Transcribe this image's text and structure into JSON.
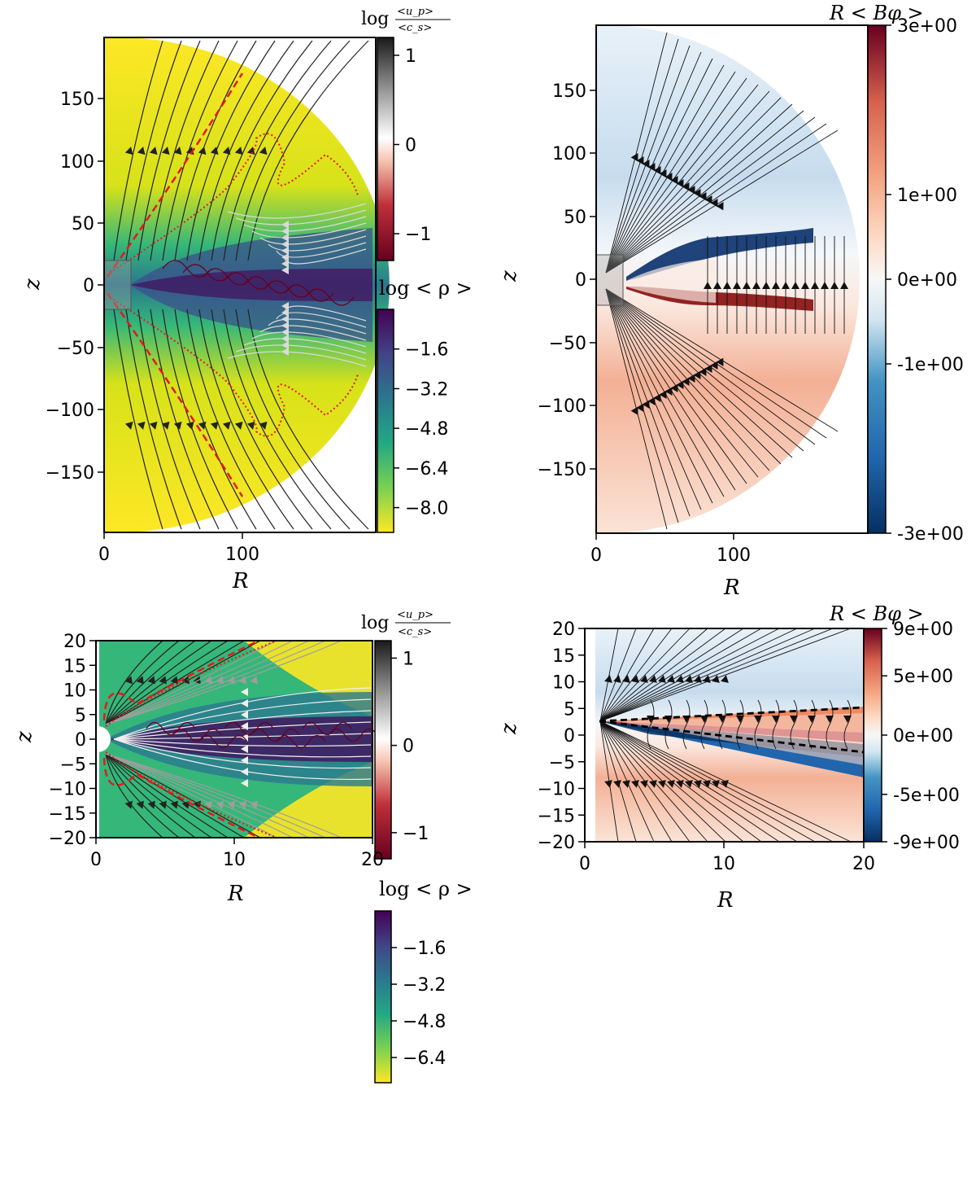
{
  "figure": {
    "panels": [
      {
        "id": "top-left",
        "xlabel": "R",
        "ylabel": "z",
        "xticks": [
          "0",
          "100"
        ],
        "yticks": [
          "150",
          "100",
          "50",
          "0",
          "−50",
          "−100",
          "−150"
        ],
        "xlim": [
          0,
          200
        ],
        "ylim": [
          -200,
          200
        ],
        "field": "log density",
        "inset_box": true,
        "colorbars": [
          {
            "id": "mach",
            "label_main": "log",
            "label_num": "<u_p>",
            "label_den": "<c_s>",
            "ticks": [
              "1",
              "0",
              "−1"
            ],
            "range": [
              -1.3,
              1.2
            ]
          },
          {
            "id": "density",
            "label": "log < ρ >",
            "ticks": [
              "−1.6",
              "−3.2",
              "−4.8",
              "−6.4",
              "−8.0"
            ],
            "range": [
              -9.0,
              0.0
            ]
          }
        ]
      },
      {
        "id": "top-right",
        "xlabel": "R",
        "ylabel": "z",
        "xticks": [
          "0",
          "100"
        ],
        "yticks": [
          "150",
          "100",
          "50",
          "0",
          "−50",
          "−100",
          "−150"
        ],
        "xlim": [
          0,
          200
        ],
        "ylim": [
          -200,
          200
        ],
        "field": "R B_phi",
        "inset_box": true,
        "colorbars": [
          {
            "id": "bphi",
            "label": "R < Bφ >",
            "ticks": [
              "3e+00",
              "1e+00",
              "0e+00",
              "-1e+00",
              "-3e+00"
            ],
            "range": [
              -3,
              3
            ]
          }
        ]
      },
      {
        "id": "bottom-left",
        "xlabel": "R",
        "ylabel": "z",
        "xticks": [
          "0",
          "10",
          "20"
        ],
        "yticks": [
          "20",
          "15",
          "10",
          "5",
          "0",
          "−5",
          "−10",
          "−15",
          "−20"
        ],
        "xlim": [
          0,
          20
        ],
        "ylim": [
          -20,
          20
        ],
        "field": "log density",
        "colorbars": [
          {
            "id": "mach",
            "label_main": "log",
            "label_num": "<u_p>",
            "label_den": "<c_s>",
            "ticks": [
              "1",
              "0",
              "−1"
            ],
            "range": [
              -1.3,
              1.2
            ]
          },
          {
            "id": "density",
            "label": "log < ρ >",
            "ticks": [
              "−1.6",
              "−3.2",
              "−4.8",
              "−6.4"
            ],
            "range": [
              -7.5,
              0.0
            ]
          }
        ]
      },
      {
        "id": "bottom-right",
        "xlabel": "R",
        "ylabel": "z",
        "xticks": [
          "0",
          "10",
          "20"
        ],
        "yticks": [
          "20",
          "15",
          "10",
          "5",
          "0",
          "−5",
          "−10",
          "−15",
          "−20"
        ],
        "xlim": [
          0,
          20
        ],
        "ylim": [
          -20,
          20
        ],
        "field": "R B_phi",
        "colorbars": [
          {
            "id": "bphi",
            "label": "R < Bφ >",
            "ticks": [
              "9e+00",
              "5e+00",
              "0e+00",
              "-5e+00",
              "-9e+00"
            ],
            "range": [
              -9,
              9
            ]
          }
        ]
      }
    ]
  },
  "chart_data": [
    {
      "type": "heatmap",
      "title": "",
      "xlabel": "R",
      "ylabel": "z",
      "xlim": [
        0,
        200
      ],
      "ylim": [
        -200,
        200
      ],
      "field": "log <ρ> with poloidal streamlines coloured by log <u_p>/<c_s>",
      "colorbar_density": {
        "label": "log < ρ >",
        "ticks": [
          -1.6,
          -3.2,
          -4.8,
          -6.4,
          -8.0
        ]
      },
      "colorbar_mach": {
        "label": "log <u_p>/<c_s>",
        "ticks": [
          1,
          0,
          -1
        ]
      },
      "annotations": [
        "red dashed contour",
        "red dotted contour",
        "grey box marking inner region"
      ]
    },
    {
      "type": "heatmap",
      "title": "",
      "xlabel": "R",
      "ylabel": "z",
      "xlim": [
        0,
        200
      ],
      "ylim": [
        -200,
        200
      ],
      "field": "R <B_φ> with field lines",
      "colorbar": {
        "label": "R < Bφ >",
        "ticks": [
          3,
          1,
          0,
          -1,
          -3
        ]
      }
    },
    {
      "type": "heatmap",
      "title": "",
      "xlabel": "R",
      "ylabel": "z",
      "xlim": [
        0,
        20
      ],
      "ylim": [
        -20,
        20
      ],
      "field": "log <ρ> with poloidal streamlines coloured by log <u_p>/<c_s>",
      "colorbar_density": {
        "label": "log < ρ >",
        "ticks": [
          -1.6,
          -3.2,
          -4.8,
          -6.4
        ]
      },
      "colorbar_mach": {
        "label": "log <u_p>/<c_s>",
        "ticks": [
          1,
          0,
          -1
        ]
      },
      "annotations": [
        "red dashed contour",
        "red dotted contour"
      ]
    },
    {
      "type": "heatmap",
      "title": "",
      "xlabel": "R",
      "ylabel": "z",
      "xlim": [
        0,
        20
      ],
      "ylim": [
        -20,
        20
      ],
      "field": "R <B_φ> with field lines",
      "colorbar": {
        "label": "R < Bφ >",
        "ticks": [
          9,
          5,
          0,
          -5,
          -9
        ]
      },
      "annotations": [
        "black dashed lines bounding disc"
      ]
    }
  ]
}
